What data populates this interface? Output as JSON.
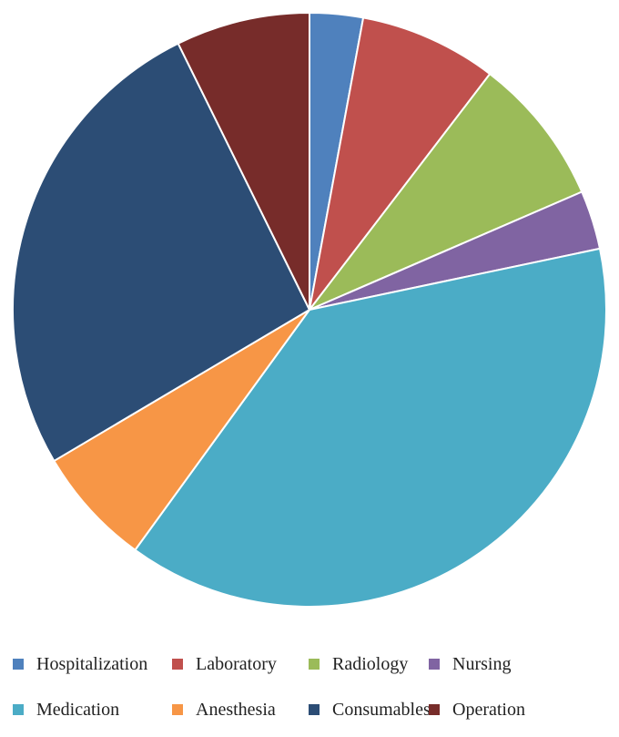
{
  "chart_data": {
    "type": "pie",
    "title": "",
    "start": "12 o'clock",
    "direction": "clockwise",
    "legend_position": "bottom",
    "slices": [
      {
        "name": "Hospitalization",
        "value": 2.9,
        "color": "#4F81BD"
      },
      {
        "name": "Laboratory",
        "value": 7.5,
        "color": "#C0504D"
      },
      {
        "name": "Radiology",
        "value": 8.1,
        "color": "#9BBB59"
      },
      {
        "name": "Nursing",
        "value": 3.2,
        "color": "#8064A2"
      },
      {
        "name": "Medication",
        "value": 38.3,
        "color": "#4BACC6"
      },
      {
        "name": "Anesthesia",
        "value": 6.5,
        "color": "#F79646"
      },
      {
        "name": "Consumables",
        "value": 26.2,
        "color": "#2C4D75"
      },
      {
        "name": "Operation",
        "value": 7.3,
        "color": "#772C2A"
      }
    ]
  }
}
